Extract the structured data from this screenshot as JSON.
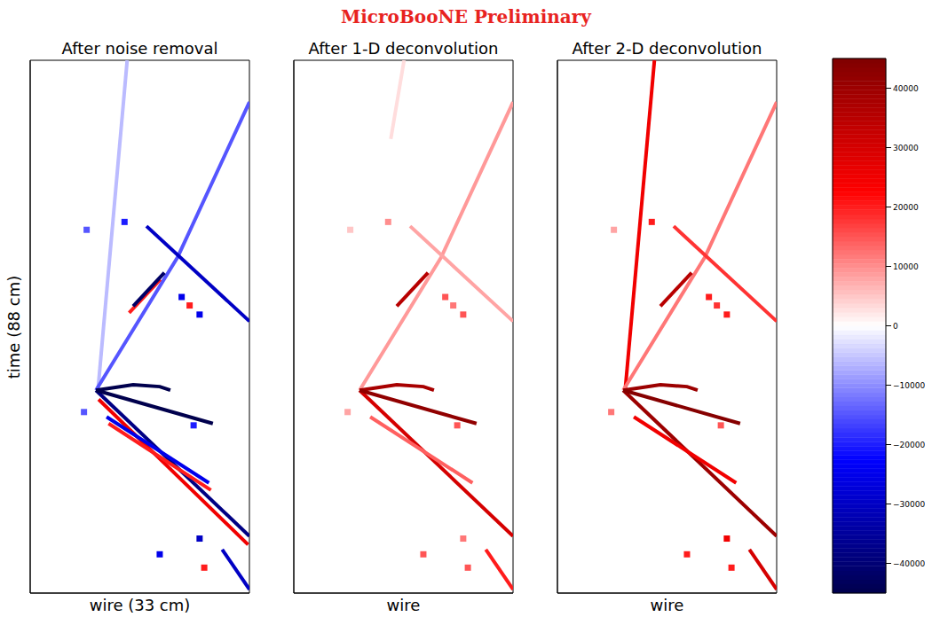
{
  "title": "MicroBooNE Preliminary",
  "colorbar": {
    "range": [
      -45000,
      45000
    ],
    "ticks": [
      {
        "value": -40000,
        "label": "−40000"
      },
      {
        "value": -30000,
        "label": "−30000"
      },
      {
        "value": -20000,
        "label": "−20000"
      },
      {
        "value": -10000,
        "label": "−10000"
      },
      0,
      10000,
      20000,
      30000,
      40000
    ]
  },
  "chart_data": [
    {
      "type": "heatmap",
      "title": "After noise removal",
      "x_label": "wire (33 cm)",
      "y_label": "time (88 cm)",
      "xlim": [
        0,
        33
      ],
      "ylim": [
        0,
        88
      ],
      "tick_labels": false,
      "tracks": [
        {
          "x": [
            14.6,
            10.2
          ],
          "y": [
            88.0,
            33.5
          ],
          "value": -6000
        },
        {
          "x": [
            33.0,
            22.2,
            9.9
          ],
          "y": [
            81.1,
            55.5,
            33.5
          ],
          "value": -15000
        },
        {
          "x": [
            17.5,
            33.0
          ],
          "y": [
            60.6,
            44.9
          ],
          "value": -30000
        },
        {
          "x": [
            14.9,
            19.6
          ],
          "y": [
            46.3,
            51.8
          ],
          "value": 20000
        },
        {
          "x": [
            15.5,
            20.2
          ],
          "y": [
            47.4,
            52.9
          ],
          "value": -42000
        },
        {
          "x": [
            10.3,
            32.8
          ],
          "y": [
            32.0,
            8.0
          ],
          "value": 25000
        },
        {
          "x": [
            9.9,
            33.0
          ],
          "y": [
            33.5,
            9.4
          ],
          "value": -38000
        },
        {
          "x": [
            11.8,
            27.2
          ],
          "y": [
            28.0,
            17.0
          ],
          "value": 20000
        },
        {
          "x": [
            11.5,
            26.9
          ],
          "y": [
            29.1,
            18.2
          ],
          "value": -25000
        },
        {
          "x": [
            9.9,
            15.5,
            19.5,
            21.1
          ],
          "y": [
            33.5,
            34.4,
            34.1,
            33.5
          ],
          "value": -45000
        },
        {
          "x": [
            9.9,
            27.5
          ],
          "y": [
            33.5,
            28.0
          ],
          "value": -45000
        },
        {
          "x": [
            28.9,
            33.0
          ],
          "y": [
            7.2,
            0.6
          ],
          "value": -30000
        }
      ],
      "points": {
        "x": [
          14.2,
          22.8,
          24.0,
          25.5,
          8.1,
          19.5,
          25.5,
          26.2,
          8.5,
          24.6
        ],
        "y": [
          61.3,
          48.9,
          47.5,
          46.0,
          29.9,
          6.4,
          9.0,
          4.2,
          60.0,
          27.7
        ],
        "values": [
          -20000,
          -25000,
          20000,
          -25000,
          -15000,
          -25000,
          -30000,
          20000,
          -15000,
          -20000
        ]
      }
    },
    {
      "type": "heatmap",
      "title": "After 1-D deconvolution",
      "x_label": "wire",
      "xlim": [
        0,
        33
      ],
      "ylim": [
        0,
        88
      ],
      "tick_labels": false,
      "tracks": [
        {
          "x": [
            16.6,
            14.6
          ],
          "y": [
            88.0,
            75.0
          ],
          "value": 3000
        },
        {
          "x": [
            33.0,
            22.2,
            9.9
          ],
          "y": [
            81.1,
            55.5,
            33.5
          ],
          "value": 9000
        },
        {
          "x": [
            17.5,
            33.0
          ],
          "y": [
            60.6,
            44.9
          ],
          "value": 8000
        },
        {
          "x": [
            15.5,
            20.2
          ],
          "y": [
            47.4,
            52.9
          ],
          "value": 35000
        },
        {
          "x": [
            9.9,
            33.0
          ],
          "y": [
            33.5,
            9.4
          ],
          "value": 30000
        },
        {
          "x": [
            11.5,
            26.9
          ],
          "y": [
            29.1,
            18.2
          ],
          "value": 14000
        },
        {
          "x": [
            9.9,
            15.5,
            19.5,
            21.1
          ],
          "y": [
            33.5,
            34.4,
            34.1,
            33.5
          ],
          "value": 38000
        },
        {
          "x": [
            9.9,
            27.5
          ],
          "y": [
            33.5,
            28.0
          ],
          "value": 42000
        },
        {
          "x": [
            28.9,
            33.0
          ],
          "y": [
            7.2,
            0.6
          ],
          "value": 20000
        }
      ],
      "points": {
        "x": [
          14.2,
          22.8,
          24.0,
          25.5,
          8.1,
          19.5,
          25.5,
          26.2,
          8.5,
          24.6
        ],
        "y": [
          61.3,
          48.9,
          47.5,
          46.0,
          29.9,
          6.4,
          9.0,
          4.2,
          60.0,
          27.7
        ],
        "values": [
          10000,
          15000,
          12000,
          15000,
          8000,
          15000,
          12000,
          15000,
          5000,
          15000
        ]
      }
    },
    {
      "type": "heatmap",
      "title": "After 2-D deconvolution",
      "x_label": "wire",
      "xlim": [
        0,
        33
      ],
      "ylim": [
        0,
        88
      ],
      "tick_labels": false,
      "tracks": [
        {
          "x": [
            14.6,
            10.2
          ],
          "y": [
            88.0,
            33.5
          ],
          "value": 25000
        },
        {
          "x": [
            33.0,
            22.2,
            9.9
          ],
          "y": [
            81.1,
            55.5,
            33.5
          ],
          "value": 12000
        },
        {
          "x": [
            17.5,
            33.0
          ],
          "y": [
            60.6,
            44.9
          ],
          "value": 18000
        },
        {
          "x": [
            15.5,
            20.2
          ],
          "y": [
            47.4,
            52.9
          ],
          "value": 35000
        },
        {
          "x": [
            9.9,
            33.0
          ],
          "y": [
            33.5,
            9.4
          ],
          "value": 40000
        },
        {
          "x": [
            11.5,
            26.9
          ],
          "y": [
            29.1,
            18.2
          ],
          "value": 25000
        },
        {
          "x": [
            9.9,
            15.5,
            19.5,
            21.1
          ],
          "y": [
            33.5,
            34.4,
            34.1,
            33.5
          ],
          "value": 40000
        },
        {
          "x": [
            9.9,
            27.5
          ],
          "y": [
            33.5,
            28.0
          ],
          "value": 44000
        },
        {
          "x": [
            28.9,
            33.0
          ],
          "y": [
            7.2,
            0.6
          ],
          "value": 30000
        }
      ],
      "points": {
        "x": [
          14.2,
          22.8,
          24.0,
          25.5,
          8.1,
          19.5,
          25.5,
          26.2,
          8.5,
          24.6
        ],
        "y": [
          61.3,
          48.9,
          47.5,
          46.0,
          29.9,
          6.4,
          9.0,
          4.2,
          60.0,
          27.7
        ],
        "values": [
          20000,
          20000,
          18000,
          20000,
          12000,
          20000,
          25000,
          20000,
          8000,
          15000
        ]
      }
    }
  ]
}
